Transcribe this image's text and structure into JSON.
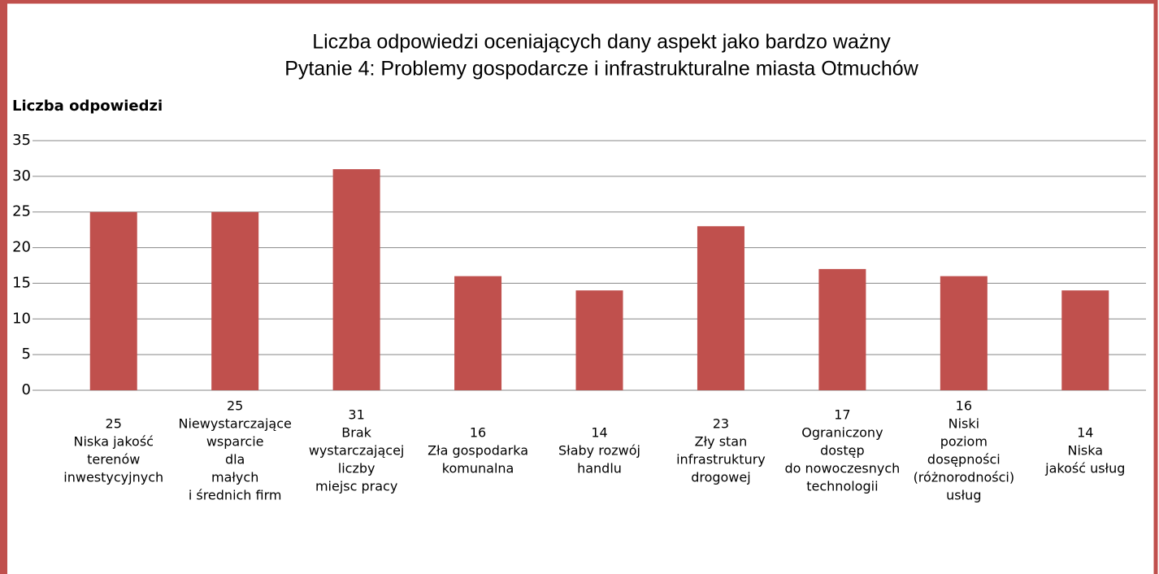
{
  "chart_data": {
    "type": "bar",
    "title": [
      "Liczba odpowiedzi oceniających dany aspekt jako bardzo ważny",
      "Pytanie 4: Problemy gospodarcze i infrastrukturalne miasta Otmuchów"
    ],
    "y_label": "Liczba odpowiedzi",
    "categories": [
      [
        "Niska jakość",
        "terenów",
        "inwestycyjnych"
      ],
      [
        "Niewystarczające",
        "wsparcie",
        "dla",
        "małych",
        "i średnich firm"
      ],
      [
        "Brak",
        "wystarczającej",
        "liczby",
        "miejsc pracy"
      ],
      [
        "Zła gospodarka",
        "komunalna"
      ],
      [
        "Słaby rozwój",
        "handlu"
      ],
      [
        "Zły stan",
        "infrastruktury",
        "drogowej"
      ],
      [
        "Ograniczony",
        "dostęp",
        "do nowoczesnych",
        "technologii"
      ],
      [
        "Niski",
        "poziom",
        "dosępności",
        "(różnorodności)",
        "usług"
      ],
      [
        "Niska",
        "jakość usług"
      ]
    ],
    "values": [
      25,
      25,
      31,
      16,
      14,
      23,
      17,
      16,
      14
    ],
    "color": "#c0504d",
    "ylim": [
      0,
      35
    ],
    "yticks": [
      0,
      5,
      10,
      15,
      20,
      25,
      30,
      35
    ],
    "grid": true
  }
}
